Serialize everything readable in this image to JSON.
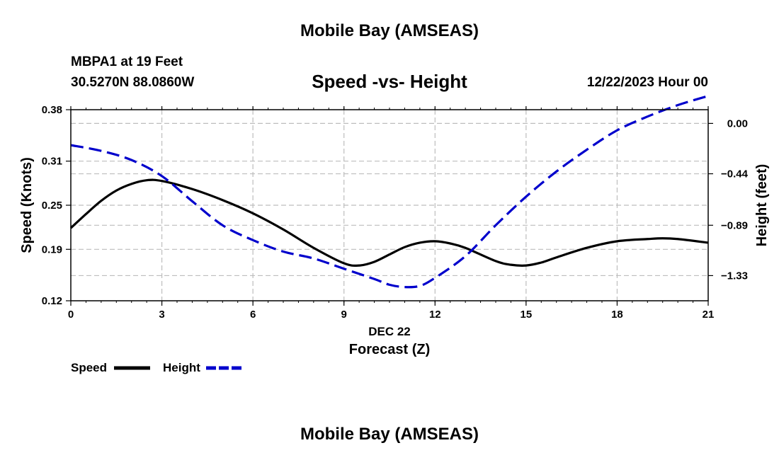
{
  "header": {
    "title": "Mobile Bay (AMSEAS)",
    "station": "MBPA1 at 19 Feet",
    "coords": "30.5270N   88.0860W",
    "subtitle": "Speed -vs- Height",
    "datetime": "12/22/2023 Hour 00"
  },
  "footer": {
    "title": "Mobile Bay (AMSEAS)"
  },
  "chart_data": {
    "type": "line",
    "title": "Speed -vs- Height",
    "xlabel": "Forecast (Z)",
    "xsublabel": "DEC 22",
    "ylabel": "Speed (Knots)",
    "y2label": "Height (feet)",
    "xlim": [
      0,
      21
    ],
    "ylim": [
      0.12,
      0.38
    ],
    "y2lim": [
      -1.55,
      0.12
    ],
    "xticks": [
      "0",
      "3",
      "6",
      "9",
      "12",
      "15",
      "18",
      "21"
    ],
    "yticks": [
      "0.38",
      "0.31",
      "0.25",
      "0.19",
      "0.12"
    ],
    "y2ticks": [
      "0.00",
      "−0.44",
      "−0.89",
      "−1.33"
    ],
    "grid": true,
    "legend": "bottom-left",
    "colors": {
      "speed": "#000000",
      "height": "#0000cc",
      "grid": "#bdbdbd"
    },
    "series": [
      {
        "name": "Speed",
        "axis": "left",
        "style": "solid",
        "x": [
          0,
          0.5,
          1,
          1.5,
          2,
          2.5,
          3,
          4,
          5,
          6,
          7,
          8,
          9,
          9.5,
          10,
          10.5,
          11,
          11.5,
          12,
          12.5,
          13,
          14,
          14.5,
          15,
          15.5,
          16,
          17,
          18,
          19,
          19.5,
          20,
          21
        ],
        "values": [
          0.219,
          0.238,
          0.256,
          0.27,
          0.279,
          0.284,
          0.283,
          0.272,
          0.257,
          0.239,
          0.217,
          0.192,
          0.171,
          0.168,
          0.173,
          0.183,
          0.193,
          0.199,
          0.201,
          0.198,
          0.192,
          0.174,
          0.169,
          0.168,
          0.172,
          0.179,
          0.192,
          0.201,
          0.204,
          0.205,
          0.204,
          0.199
        ]
      },
      {
        "name": "Height",
        "axis": "right",
        "style": "dashed",
        "x": [
          0,
          1,
          2,
          3,
          4,
          5,
          6,
          7,
          8,
          9,
          10,
          10.5,
          11,
          11.5,
          12,
          13,
          14,
          15,
          16,
          17,
          18,
          19,
          20,
          21
        ],
        "values": [
          -0.19,
          -0.24,
          -0.32,
          -0.46,
          -0.68,
          -0.89,
          -1.02,
          -1.12,
          -1.18,
          -1.27,
          -1.36,
          -1.41,
          -1.43,
          -1.42,
          -1.35,
          -1.16,
          -0.89,
          -0.64,
          -0.42,
          -0.23,
          -0.06,
          0.06,
          0.16,
          0.24
        ]
      }
    ]
  }
}
